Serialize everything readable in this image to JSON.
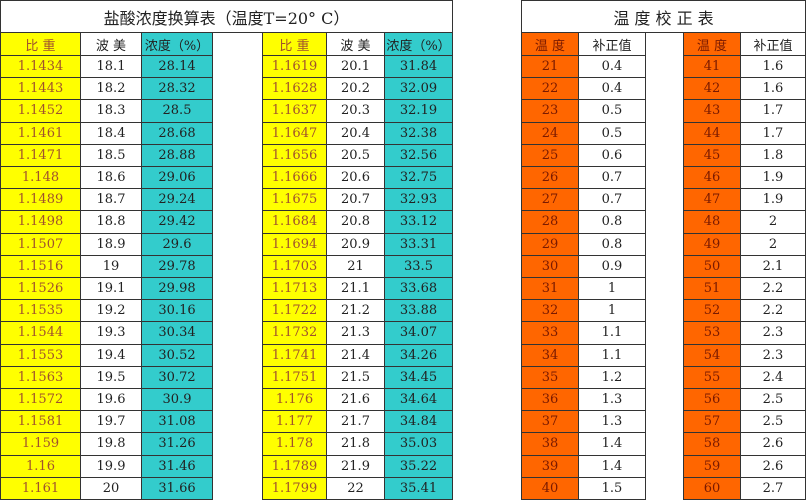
{
  "hcl_table": {
    "title": "盐酸浓度换算表（温度T=20° C）",
    "headers": [
      "比 重",
      "波 美",
      "浓度（%）",
      "比 重",
      "波 美",
      "浓度（%）"
    ],
    "groups": [
      {
        "rows": [
          [
            1.1434,
            18.1,
            28.14
          ],
          [
            1.1443,
            18.2,
            28.32
          ],
          [
            1.1452,
            18.3,
            28.5
          ],
          [
            1.1461,
            18.4,
            28.68
          ],
          [
            1.1471,
            18.5,
            28.88
          ],
          [
            1.148,
            18.6,
            29.06
          ],
          [
            1.1489,
            18.7,
            29.24
          ],
          [
            1.1498,
            18.8,
            29.42
          ],
          [
            1.1507,
            18.9,
            29.6
          ],
          [
            1.1516,
            19,
            29.78
          ],
          [
            1.1526,
            19.1,
            29.98
          ],
          [
            1.1535,
            19.2,
            30.16
          ],
          [
            1.1544,
            19.3,
            30.34
          ],
          [
            1.1553,
            19.4,
            30.52
          ],
          [
            1.1563,
            19.5,
            30.72
          ],
          [
            1.1572,
            19.6,
            30.9
          ],
          [
            1.1581,
            19.7,
            31.08
          ],
          [
            1.159,
            19.8,
            31.26
          ],
          [
            1.16,
            19.9,
            31.46
          ],
          [
            1.161,
            20,
            31.66
          ]
        ]
      },
      {
        "rows": [
          [
            1.1619,
            20.1,
            31.84
          ],
          [
            1.1628,
            20.2,
            32.09
          ],
          [
            1.1637,
            20.3,
            32.19
          ],
          [
            1.1647,
            20.4,
            32.38
          ],
          [
            1.1656,
            20.5,
            32.56
          ],
          [
            1.1666,
            20.6,
            32.75
          ],
          [
            1.1675,
            20.7,
            32.93
          ],
          [
            1.1684,
            20.8,
            33.12
          ],
          [
            1.1694,
            20.9,
            33.31
          ],
          [
            1.1703,
            21,
            33.5
          ],
          [
            1.1713,
            21.1,
            33.68
          ],
          [
            1.1722,
            21.2,
            33.88
          ],
          [
            1.1732,
            21.3,
            34.07
          ],
          [
            1.1741,
            21.4,
            34.26
          ],
          [
            1.1751,
            21.5,
            34.45
          ],
          [
            1.176,
            21.6,
            34.64
          ],
          [
            1.177,
            21.7,
            34.84
          ],
          [
            1.178,
            21.8,
            35.03
          ],
          [
            1.1789,
            21.9,
            35.22
          ],
          [
            1.1799,
            22,
            35.41
          ]
        ]
      }
    ]
  },
  "temp_table": {
    "title": "温 度 校 正 表",
    "headers": [
      "温 度",
      "补正值",
      "温 度",
      "补正值"
    ],
    "groups": [
      {
        "rows": [
          [
            21,
            0.4
          ],
          [
            22,
            0.4
          ],
          [
            23,
            0.5
          ],
          [
            24,
            0.5
          ],
          [
            25,
            0.6
          ],
          [
            26,
            0.7
          ],
          [
            27,
            0.7
          ],
          [
            28,
            0.8
          ],
          [
            29,
            0.8
          ],
          [
            30,
            0.9
          ],
          [
            31,
            1
          ],
          [
            32,
            1
          ],
          [
            33,
            1.1
          ],
          [
            34,
            1.1
          ],
          [
            35,
            1.2
          ],
          [
            36,
            1.3
          ],
          [
            37,
            1.3
          ],
          [
            38,
            1.4
          ],
          [
            39,
            1.4
          ],
          [
            40,
            1.5
          ]
        ]
      },
      {
        "rows": [
          [
            41,
            1.6
          ],
          [
            42,
            1.6
          ],
          [
            43,
            1.7
          ],
          [
            44,
            1.7
          ],
          [
            45,
            1.8
          ],
          [
            46,
            1.9
          ],
          [
            47,
            1.9
          ],
          [
            48,
            2
          ],
          [
            49,
            2
          ],
          [
            50,
            2.1
          ],
          [
            51,
            2.2
          ],
          [
            52,
            2.2
          ],
          [
            53,
            2.3
          ],
          [
            54,
            2.3
          ],
          [
            55,
            2.4
          ],
          [
            56,
            2.5
          ],
          [
            57,
            2.5
          ],
          [
            58,
            2.6
          ],
          [
            59,
            2.6
          ],
          [
            60,
            2.7
          ]
        ]
      }
    ]
  }
}
